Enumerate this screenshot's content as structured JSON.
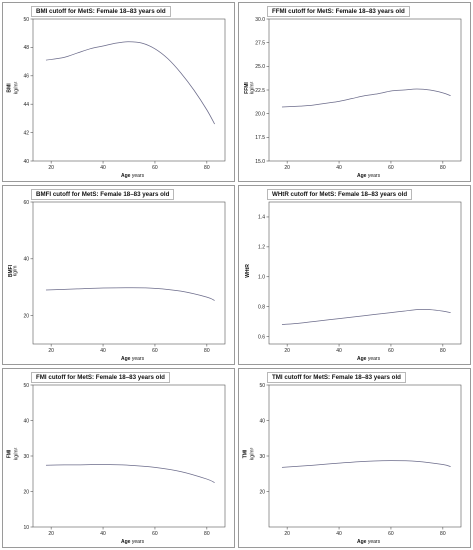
{
  "chart_data": [
    {
      "type": "line",
      "title": "BMI cutoff for MetS: Female 18–83 years old",
      "ylabel": "BMI",
      "yunit": "kg/m²",
      "xlabel": "Age",
      "xunit": "years",
      "xlim": [
        13,
        87
      ],
      "ylim": [
        40,
        50
      ],
      "xticks": [
        20,
        40,
        60,
        80
      ],
      "yticks": [
        40,
        42,
        44,
        46,
        48,
        50
      ],
      "series": [
        {
          "x": [
            18,
            25,
            30,
            35,
            40,
            45,
            50,
            55,
            60,
            65,
            70,
            75,
            80,
            83
          ],
          "y": [
            47.1,
            47.3,
            47.6,
            47.9,
            48.1,
            48.3,
            48.4,
            48.3,
            47.9,
            47.2,
            46.2,
            45.0,
            43.6,
            42.6
          ]
        }
      ]
    },
    {
      "type": "line",
      "title": "FFMI cutoff for MetS: Female 18–83 years old",
      "ylabel": "FFMI",
      "yunit": "kg/m²",
      "xlabel": "Age",
      "xunit": "years",
      "xlim": [
        13,
        87
      ],
      "ylim": [
        15,
        30
      ],
      "xticks": [
        20,
        40,
        60,
        80
      ],
      "yticks": [
        "15.0",
        "17.5",
        "20.0",
        "22.5",
        "25.0",
        "27.5",
        "30.0"
      ],
      "series": [
        {
          "x": [
            18,
            25,
            30,
            35,
            40,
            45,
            50,
            55,
            60,
            65,
            70,
            75,
            80,
            83
          ],
          "y": [
            20.7,
            20.8,
            20.9,
            21.1,
            21.3,
            21.6,
            21.9,
            22.1,
            22.4,
            22.5,
            22.6,
            22.5,
            22.2,
            21.9
          ]
        }
      ]
    },
    {
      "type": "line",
      "title": "BMFI cutoff for MetS: Female 18–83 years old",
      "ylabel": "BMFI",
      "yunit": "kg/m",
      "xlabel": "Age",
      "xunit": "years",
      "xlim": [
        13,
        87
      ],
      "ylim": [
        10,
        60
      ],
      "xticks": [
        20,
        40,
        60,
        80
      ],
      "yticks": [
        20,
        40,
        60
      ],
      "series": [
        {
          "x": [
            18,
            30,
            40,
            50,
            60,
            70,
            80,
            83
          ],
          "y": [
            29.0,
            29.4,
            29.7,
            29.8,
            29.6,
            28.6,
            26.5,
            25.3
          ]
        }
      ]
    },
    {
      "type": "line",
      "title": "WHtR cutoff for MetS: Female 18–83 years old",
      "ylabel": "WHtR",
      "yunit": "",
      "xlabel": "Age",
      "xunit": "years",
      "xlim": [
        13,
        87
      ],
      "ylim": [
        0.55,
        1.5
      ],
      "xticks": [
        20,
        40,
        60,
        80
      ],
      "yticks": [
        "0.6",
        "0.8",
        "1.0",
        "1.2",
        "1.4"
      ],
      "series": [
        {
          "x": [
            18,
            25,
            30,
            40,
            50,
            60,
            65,
            70,
            75,
            80,
            83
          ],
          "y": [
            0.68,
            0.69,
            0.7,
            0.72,
            0.74,
            0.76,
            0.77,
            0.78,
            0.78,
            0.77,
            0.76
          ]
        }
      ]
    },
    {
      "type": "line",
      "title": "FMI cutoff for MetS: Female 18–83 years old",
      "ylabel": "FMI",
      "yunit": "kg/m²",
      "xlabel": "Age",
      "xunit": "years",
      "xlim": [
        13,
        87
      ],
      "ylim": [
        10,
        50
      ],
      "xticks": [
        20,
        40,
        60,
        80
      ],
      "yticks": [
        10,
        20,
        30,
        40,
        50
      ],
      "series": [
        {
          "x": [
            18,
            25,
            30,
            40,
            50,
            60,
            70,
            80,
            83
          ],
          "y": [
            27.4,
            27.5,
            27.5,
            27.6,
            27.4,
            26.8,
            25.6,
            23.5,
            22.5
          ]
        }
      ]
    },
    {
      "type": "line",
      "title": "TMI cutoff for MetS: Female 18–83 years old",
      "ylabel": "TMI",
      "yunit": "kg/m³",
      "xlabel": "Age",
      "xunit": "years",
      "xlim": [
        13,
        87
      ],
      "ylim": [
        10,
        50
      ],
      "xticks": [
        20,
        40,
        60,
        80
      ],
      "yticks": [
        20,
        30,
        40,
        50
      ],
      "series": [
        {
          "x": [
            18,
            30,
            40,
            50,
            60,
            70,
            80,
            83
          ],
          "y": [
            26.8,
            27.4,
            28.0,
            28.5,
            28.7,
            28.5,
            27.6,
            27.0
          ]
        }
      ]
    }
  ]
}
